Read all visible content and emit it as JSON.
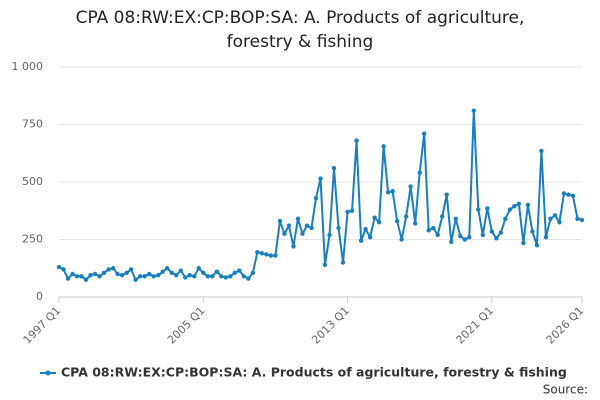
{
  "chart_data": {
    "type": "line",
    "title": "CPA 08:RW:EX:CP:BOP:SA: A. Products of agriculture, forestry & fishing",
    "source": "Source:",
    "categories": [
      "1997 Q1",
      null,
      null,
      null,
      null,
      null,
      null,
      null,
      null,
      null,
      null,
      null,
      null,
      null,
      null,
      null,
      null,
      null,
      null,
      null,
      null,
      null,
      null,
      null,
      null,
      null,
      null,
      null,
      null,
      null,
      null,
      null,
      "2005 Q1",
      null,
      null,
      null,
      null,
      null,
      null,
      null,
      null,
      null,
      null,
      null,
      null,
      null,
      null,
      null,
      null,
      null,
      null,
      null,
      null,
      null,
      null,
      null,
      null,
      null,
      null,
      null,
      null,
      null,
      null,
      null,
      "2013 Q1",
      null,
      null,
      null,
      null,
      null,
      null,
      null,
      null,
      null,
      null,
      null,
      null,
      null,
      null,
      null,
      null,
      null,
      null,
      null,
      null,
      null,
      null,
      null,
      null,
      null,
      null,
      null,
      null,
      null,
      null,
      null,
      "2021 Q1",
      null,
      null,
      null,
      null,
      null,
      null,
      null,
      null,
      null,
      null,
      null,
      null,
      null,
      null,
      null,
      null,
      null,
      null,
      null,
      "2026 Q1"
    ],
    "series": [
      {
        "name": "CPA 08:RW:EX:CP:BOP:SA: A. Products of agriculture, forestry & fishing",
        "color": "#1a7fbf",
        "values": [
          130,
          120,
          80,
          100,
          90,
          90,
          75,
          95,
          100,
          90,
          105,
          120,
          125,
          100,
          95,
          105,
          120,
          75,
          90,
          90,
          100,
          90,
          95,
          110,
          125,
          105,
          95,
          115,
          85,
          95,
          90,
          125,
          105,
          90,
          90,
          110,
          90,
          85,
          90,
          105,
          115,
          90,
          80,
          105,
          195,
          190,
          185,
          180,
          180,
          330,
          275,
          310,
          220,
          340,
          275,
          310,
          300,
          430,
          515,
          140,
          270,
          560,
          300,
          150,
          370,
          375,
          680,
          245,
          295,
          260,
          345,
          325,
          655,
          455,
          460,
          330,
          250,
          350,
          480,
          320,
          540,
          710,
          290,
          300,
          270,
          350,
          445,
          240,
          340,
          265,
          250,
          260,
          810,
          380,
          270,
          385,
          285,
          255,
          280,
          340,
          380,
          395,
          405,
          235,
          400,
          285,
          225,
          635,
          260,
          340,
          355,
          325,
          450,
          445,
          440,
          340,
          335
        ]
      }
    ],
    "ylim": [
      0,
      1000
    ],
    "yticks": [
      0,
      250,
      500,
      750,
      {
        "value": 1000,
        "label": "1 000"
      }
    ],
    "grid": true,
    "legend": "bottom"
  }
}
